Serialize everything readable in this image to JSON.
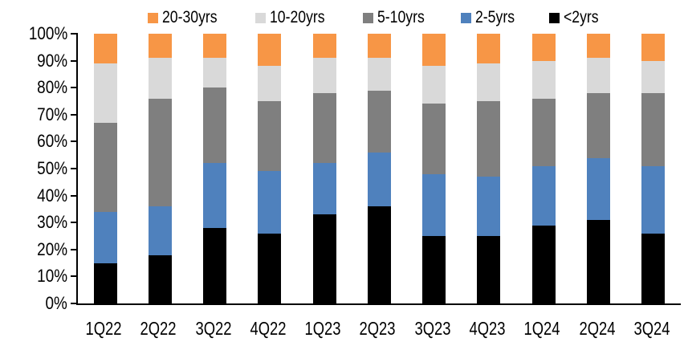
{
  "chart_data": {
    "type": "bar",
    "stacked": true,
    "percent_stacked": true,
    "title": "",
    "xlabel": "",
    "ylabel": "",
    "categories": [
      "1Q22",
      "2Q22",
      "3Q22",
      "4Q22",
      "1Q23",
      "2Q23",
      "3Q23",
      "4Q23",
      "1Q24",
      "2Q24",
      "3Q24"
    ],
    "series": [
      {
        "name": "<2yrs",
        "color": "#000000",
        "values": [
          15,
          18,
          28,
          26,
          33,
          36,
          25,
          25,
          29,
          31,
          26
        ]
      },
      {
        "name": "2-5yrs",
        "color": "#4F81BD",
        "values": [
          19,
          18,
          24,
          23,
          19,
          20,
          23,
          22,
          22,
          23,
          25
        ]
      },
      {
        "name": "5-10yrs",
        "color": "#7F7F7F",
        "values": [
          33,
          40,
          28,
          26,
          26,
          23,
          26,
          28,
          25,
          24,
          27
        ]
      },
      {
        "name": "10-20yrs",
        "color": "#D9D9D9",
        "values": [
          22,
          15,
          11,
          13,
          13,
          12,
          14,
          14,
          14,
          13,
          12
        ]
      },
      {
        "name": "20-30yrs",
        "color": "#F79646",
        "values": [
          11,
          9,
          9,
          12,
          9,
          9,
          12,
          11,
          10,
          9,
          10
        ]
      }
    ],
    "legend": {
      "position": "top",
      "order": [
        "20-30yrs",
        "10-20yrs",
        "5-10yrs",
        "2-5yrs",
        "<2yrs"
      ]
    },
    "y_axis": {
      "range": [
        0,
        100
      ],
      "ticks": [
        "0%",
        "10%",
        "20%",
        "30%",
        "40%",
        "50%",
        "60%",
        "70%",
        "80%",
        "90%",
        "100%"
      ],
      "grid": false
    },
    "colors": {
      "axis": "#000000",
      "background": "#FFFFFF"
    }
  }
}
